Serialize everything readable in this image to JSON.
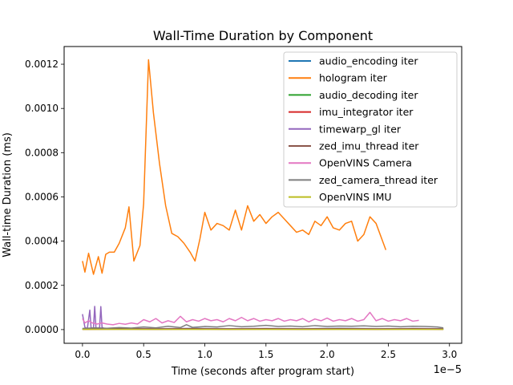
{
  "chart_data": {
    "type": "line",
    "title": "Wall-Time Duration by Component",
    "xlabel": "Time (seconds after program start)",
    "ylabel": "Wall-time Duration (ms)",
    "x_offset_label": "1e−5",
    "xlim": [
      -1.5e-06,
      3.1e-05
    ],
    "ylim": [
      -6.2e-05,
      0.00128
    ],
    "x_ticks": [
      {
        "value": 0,
        "label": "0.0"
      },
      {
        "value": 5e-06,
        "label": "0.5"
      },
      {
        "value": 1e-05,
        "label": "1.0"
      },
      {
        "value": 1.5e-05,
        "label": "1.5"
      },
      {
        "value": 2e-05,
        "label": "2.0"
      },
      {
        "value": 2.5e-05,
        "label": "2.5"
      },
      {
        "value": 3e-05,
        "label": "3.0"
      }
    ],
    "y_ticks": [
      {
        "value": 0,
        "label": "0.0000"
      },
      {
        "value": 0.0002,
        "label": "0.0002"
      },
      {
        "value": 0.0004,
        "label": "0.0004"
      },
      {
        "value": 0.0006,
        "label": "0.0006"
      },
      {
        "value": 0.0008,
        "label": "0.0008"
      },
      {
        "value": 0.001,
        "label": "0.0010"
      },
      {
        "value": 0.0012,
        "label": "0.0012"
      }
    ],
    "legend_position": "top-right",
    "series": [
      {
        "name": "audio_encoding iter",
        "color": "#1f77b4",
        "x": [
          0,
          3e-06,
          6e-06,
          9e-06,
          1.2e-05,
          1.5e-05,
          1.8e-05,
          2.1e-05,
          2.4e-05,
          2.7e-05,
          2.95e-05
        ],
        "y": [
          3e-06,
          4e-06,
          3e-06,
          5e-06,
          4e-06,
          3e-06,
          4e-06,
          5e-06,
          4e-06,
          3e-06,
          4e-06
        ]
      },
      {
        "name": "hologram iter",
        "color": "#ff7f0e",
        "x": [
          0,
          2e-07,
          5e-07,
          9e-07,
          1.3e-06,
          1.6e-06,
          1.9e-06,
          2.2e-06,
          2.6e-06,
          3e-06,
          3.5e-06,
          3.8e-06,
          4.2e-06,
          4.7e-06,
          5e-06,
          5.4e-06,
          5.8e-06,
          6.3e-06,
          6.8e-06,
          7.3e-06,
          7.8e-06,
          8.3e-06,
          8.8e-06,
          9.2e-06,
          9.6e-06,
          1e-05,
          1.05e-05,
          1.1e-05,
          1.15e-05,
          1.2e-05,
          1.25e-05,
          1.3e-05,
          1.35e-05,
          1.4e-05,
          1.45e-05,
          1.5e-05,
          1.55e-05,
          1.6e-05,
          1.65e-05,
          1.7e-05,
          1.75e-05,
          1.8e-05,
          1.85e-05,
          1.9e-05,
          1.95e-05,
          2e-05,
          2.05e-05,
          2.1e-05,
          2.15e-05,
          2.2e-05,
          2.25e-05,
          2.3e-05,
          2.35e-05,
          2.4e-05,
          2.48e-05
        ],
        "y": [
          0.00031,
          0.00026,
          0.000345,
          0.00025,
          0.00033,
          0.000255,
          0.00034,
          0.00035,
          0.00035,
          0.00039,
          0.00046,
          0.000555,
          0.00031,
          0.00038,
          0.00057,
          0.00122,
          0.00098,
          0.00075,
          0.00056,
          0.000435,
          0.00042,
          0.00039,
          0.00035,
          0.00031,
          0.00041,
          0.00053,
          0.00045,
          0.00048,
          0.00047,
          0.00045,
          0.00054,
          0.00045,
          0.00056,
          0.00049,
          0.00052,
          0.00048,
          0.00051,
          0.00053,
          0.0005,
          0.00047,
          0.00044,
          0.00045,
          0.00043,
          0.00049,
          0.00047,
          0.00051,
          0.00046,
          0.00045,
          0.00048,
          0.00049,
          0.0004,
          0.00043,
          0.00051,
          0.00048,
          0.00036
        ]
      },
      {
        "name": "audio_decoding iter",
        "color": "#2ca02c",
        "x": [
          0,
          3e-06,
          6e-06,
          9e-06,
          1.2e-05,
          1.5e-05,
          1.8e-05,
          2.1e-05,
          2.4e-05,
          2.7e-05,
          2.95e-05
        ],
        "y": [
          2e-06,
          3e-06,
          2e-06,
          3e-06,
          2e-06,
          3e-06,
          2e-06,
          3e-06,
          2e-06,
          3e-06,
          2e-06
        ]
      },
      {
        "name": "imu_integrator iter",
        "color": "#d62728",
        "x": [
          0,
          3e-06,
          6e-06,
          9e-06,
          1.2e-05,
          1.5e-05,
          1.8e-05,
          2.1e-05,
          2.4e-05,
          2.7e-05,
          2.95e-05
        ],
        "y": [
          1e-06,
          2e-06,
          1e-06,
          2e-06,
          1e-06,
          2e-06,
          1e-06,
          2e-06,
          1e-06,
          2e-06,
          1e-06
        ]
      },
      {
        "name": "timewarp_gl iter",
        "color": "#9467bd",
        "x": [
          0,
          2e-07,
          4e-07,
          6e-07,
          7e-07,
          8e-07,
          9e-07,
          1e-06,
          1.1e-06,
          1.2e-06,
          1.4e-06,
          1.5e-06,
          1.6e-06,
          1.8e-06,
          2.5e-06,
          4e-06,
          6e-06,
          9e-06,
          1.2e-05,
          1.5e-05,
          1.8e-05,
          2.1e-05,
          2.4e-05,
          2.7e-05,
          2.95e-05
        ],
        "y": [
          7e-05,
          1e-05,
          5e-06,
          8.8e-05,
          1e-05,
          5e-06,
          1e-05,
          0.000105,
          1e-05,
          5e-06,
          1e-05,
          0.000104,
          1e-05,
          5e-06,
          4e-06,
          5e-06,
          4e-06,
          5e-06,
          4e-06,
          5e-06,
          4e-06,
          5e-06,
          4e-06,
          5e-06,
          4e-06
        ]
      },
      {
        "name": "zed_imu_thread iter",
        "color": "#8c564b",
        "x": [
          0,
          3e-06,
          6e-06,
          9e-06,
          1.2e-05,
          1.5e-05,
          1.8e-05,
          2.1e-05,
          2.4e-05,
          2.7e-05,
          2.95e-05
        ],
        "y": [
          3e-06,
          4e-06,
          3e-06,
          4e-06,
          3e-06,
          4e-06,
          3e-06,
          4e-06,
          3e-06,
          4e-06,
          3e-06
        ]
      },
      {
        "name": "OpenVINS Camera",
        "color": "#e377c2",
        "x": [
          0,
          2e-07,
          5e-07,
          8e-07,
          1.2e-06,
          1.6e-06,
          2e-06,
          2.5e-06,
          3e-06,
          3.5e-06,
          4e-06,
          4.5e-06,
          5e-06,
          5.5e-06,
          6e-06,
          6.5e-06,
          7e-06,
          7.5e-06,
          8e-06,
          8.5e-06,
          9e-06,
          9.5e-06,
          1e-05,
          1.05e-05,
          1.1e-05,
          1.15e-05,
          1.2e-05,
          1.25e-05,
          1.3e-05,
          1.35e-05,
          1.4e-05,
          1.45e-05,
          1.5e-05,
          1.55e-05,
          1.6e-05,
          1.65e-05,
          1.7e-05,
          1.75e-05,
          1.8e-05,
          1.85e-05,
          1.9e-05,
          1.95e-05,
          2e-05,
          2.05e-05,
          2.1e-05,
          2.15e-05,
          2.2e-05,
          2.25e-05,
          2.3e-05,
          2.35e-05,
          2.4e-05,
          2.45e-05,
          2.5e-05,
          2.55e-05,
          2.6e-05,
          2.65e-05,
          2.7e-05,
          2.75e-05
        ],
        "y": [
          5e-05,
          3e-05,
          4e-05,
          3e-05,
          2.5e-05,
          3e-05,
          2.5e-05,
          2.2e-05,
          2.8e-05,
          2.4e-05,
          3e-05,
          2.5e-05,
          4.5e-05,
          3.5e-05,
          5e-05,
          3e-05,
          4e-05,
          3.2e-05,
          6e-05,
          3.5e-05,
          4.5e-05,
          3.8e-05,
          5e-05,
          4e-05,
          4.5e-05,
          3.5e-05,
          5e-05,
          4e-05,
          5.5e-05,
          4e-05,
          5e-05,
          3.8e-05,
          4.5e-05,
          4e-05,
          5e-05,
          3.8e-05,
          4.5e-05,
          4e-05,
          5e-05,
          3.5e-05,
          4.8e-05,
          4e-05,
          5.2e-05,
          3.8e-05,
          4.5e-05,
          4e-05,
          5e-05,
          3.8e-05,
          4.5e-05,
          7.8e-05,
          4e-05,
          5e-05,
          3.8e-05,
          4.5e-05,
          4e-05,
          5e-05,
          3.8e-05,
          4.2e-05
        ]
      },
      {
        "name": "zed_camera_thread iter",
        "color": "#7f7f7f",
        "x": [
          0,
          1e-06,
          2e-06,
          3e-06,
          4e-06,
          5e-06,
          6e-06,
          7e-06,
          8e-06,
          8.5e-06,
          9e-06,
          1e-05,
          1.1e-05,
          1.2e-05,
          1.3e-05,
          1.4e-05,
          1.5e-05,
          1.6e-05,
          1.7e-05,
          1.8e-05,
          1.9e-05,
          2e-05,
          2.1e-05,
          2.2e-05,
          2.3e-05,
          2.4e-05,
          2.5e-05,
          2.6e-05,
          2.7e-05,
          2.8e-05,
          2.9e-05,
          2.95e-05
        ],
        "y": [
          5e-06,
          8e-06,
          6e-06,
          9e-06,
          7e-06,
          1.2e-05,
          8e-06,
          1.5e-05,
          9e-06,
          2.2e-05,
          1e-05,
          1.4e-05,
          1.2e-05,
          1.8e-05,
          1.3e-05,
          1.5e-05,
          1.9e-05,
          1.4e-05,
          1.6e-05,
          1.3e-05,
          1.8e-05,
          1.4e-05,
          1.6e-05,
          1.5e-05,
          1.7e-05,
          1.4e-05,
          1.6e-05,
          1.3e-05,
          1.5e-05,
          1.4e-05,
          1.2e-05,
          8e-06
        ]
      },
      {
        "name": "OpenVINS IMU",
        "color": "#bcbd22",
        "x": [
          0,
          3e-06,
          6e-06,
          9e-06,
          1.2e-05,
          1.5e-05,
          1.8e-05,
          2.1e-05,
          2.4e-05,
          2.7e-05,
          2.95e-05
        ],
        "y": [
          1e-06,
          1e-06,
          1e-06,
          1e-06,
          1e-06,
          1e-06,
          1e-06,
          1e-06,
          1e-06,
          1e-06,
          1e-06
        ]
      }
    ]
  }
}
